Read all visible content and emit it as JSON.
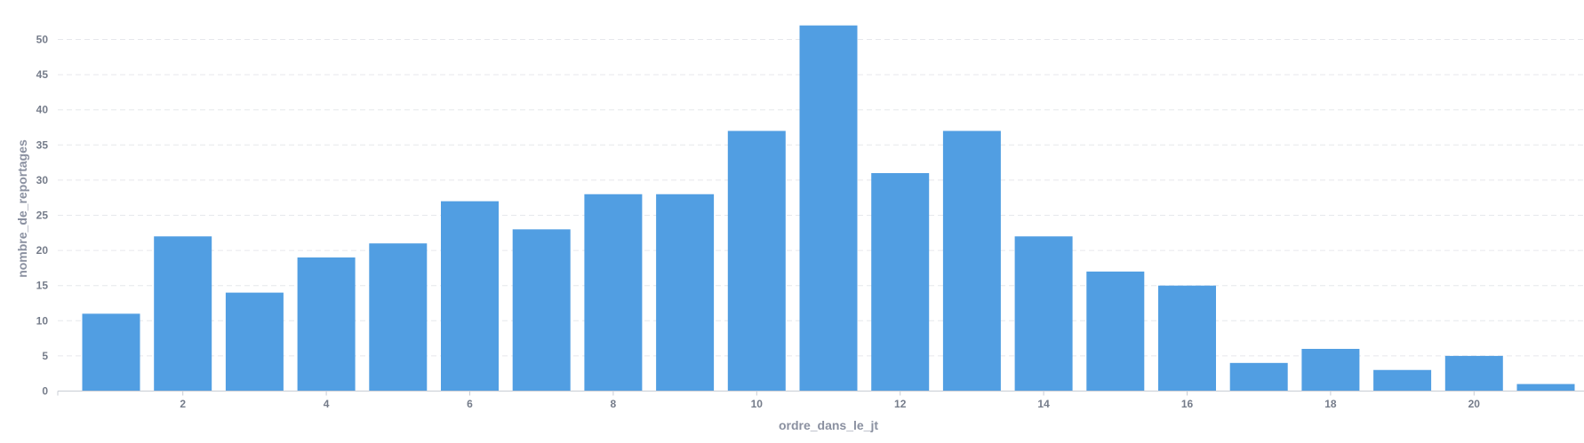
{
  "chart_data": {
    "type": "bar",
    "xlabel": "ordre_dans_le_jt",
    "ylabel": "nombre_de_reportages",
    "x": [
      1,
      2,
      3,
      4,
      5,
      6,
      7,
      8,
      9,
      10,
      11,
      12,
      13,
      14,
      15,
      16,
      17,
      18,
      19,
      20,
      21
    ],
    "values": [
      11,
      22,
      14,
      19,
      21,
      27,
      23,
      28,
      28,
      37,
      52,
      31,
      37,
      22,
      17,
      15,
      4,
      6,
      3,
      5,
      1
    ],
    "x_ticks": [
      2,
      4,
      6,
      8,
      10,
      12,
      14,
      16,
      18,
      20
    ],
    "y_ticks": [
      0,
      5,
      10,
      15,
      20,
      25,
      30,
      35,
      40,
      45,
      50
    ],
    "ylim": [
      0,
      52
    ],
    "grid": true,
    "bar_color": "#519ee2"
  }
}
